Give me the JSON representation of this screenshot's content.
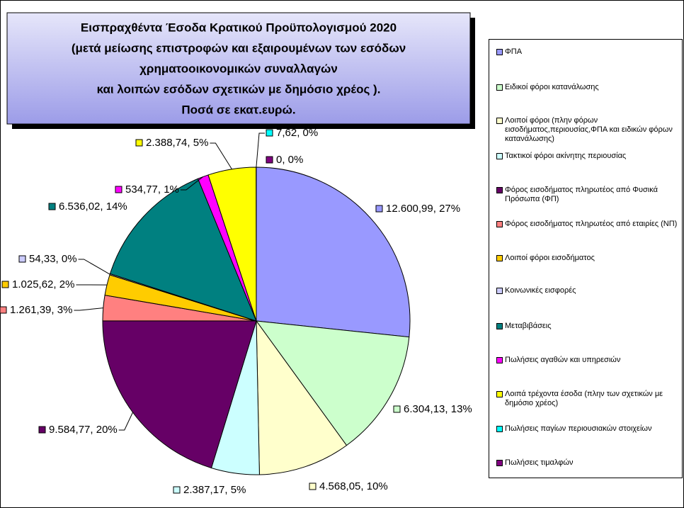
{
  "chart_data": {
    "type": "pie",
    "title": [
      "Εισπραχθέντα Έσοδα Κρατικού Προϋπολογισμού 2020",
      "(μετά μείωσης επιστροφών και εξαιρουμένων των εσόδων",
      "χρηματοοικονομικών συναλλαγών",
      "και λοιπών εσόδων σχετικών με δημόσιο χρέος ).",
      "Ποσά σε εκατ.ευρώ."
    ],
    "categories": [
      "ΦΠΑ",
      "Ειδικοί φόροι κατανάλωσης",
      "Λοιποί φόροι (πλην φόρων εισοδήματος,περιουσίας,ΦΠΑ και ειδικών φόρων κατανάλωσης)",
      "Τακτικοί φόροι ακίνητης περιουσίας",
      "Φόρος εισοδήματος πληρωτέος από Φυσικά Πρόσωπα (ΦΠ)",
      "Φόρος εισοδήματος πληρωτέος από εταιρίες (ΝΠ)",
      "Λοιποί φόροι εισοδήματος",
      "Κοινωνικές εισφορές",
      "Μεταβιβάσεις",
      "Πωλήσεις αγαθών και υπηρεσιών",
      "Λοιπά τρέχοντα έσοδα (πλην των σχετικών με δημόσιο χρέος)",
      "Πωλήσεις παγίων περιουσιακών στοιχείων",
      "Πωλήσεις τιμαλφών"
    ],
    "values": [
      12600.99,
      6304.13,
      4568.05,
      2387.17,
      9584.77,
      1261.39,
      1025.62,
      54.33,
      6536.02,
      534.77,
      2388.74,
      7.62,
      0
    ],
    "value_labels": [
      "12.600,99, 27%",
      "6.304,13, 13%",
      "4.568,05, 10%",
      "2.387,17, 5%",
      "9.584,77, 20%",
      "1.261,39, 3%",
      "1.025,62, 2%",
      "54,33, 0%",
      "6.536,02, 14%",
      "534,77, 1%",
      "2.388,74, 5%",
      "7,62, 0%",
      "0, 0%"
    ],
    "colors": [
      "#9999ff",
      "#ccffcc",
      "#ffffcc",
      "#ccffff",
      "#660066",
      "#ff8080",
      "#ffcc00",
      "#ccccff",
      "#008080",
      "#ff00ff",
      "#ffff00",
      "#00ffff",
      "#800080"
    ],
    "legend": "right"
  }
}
